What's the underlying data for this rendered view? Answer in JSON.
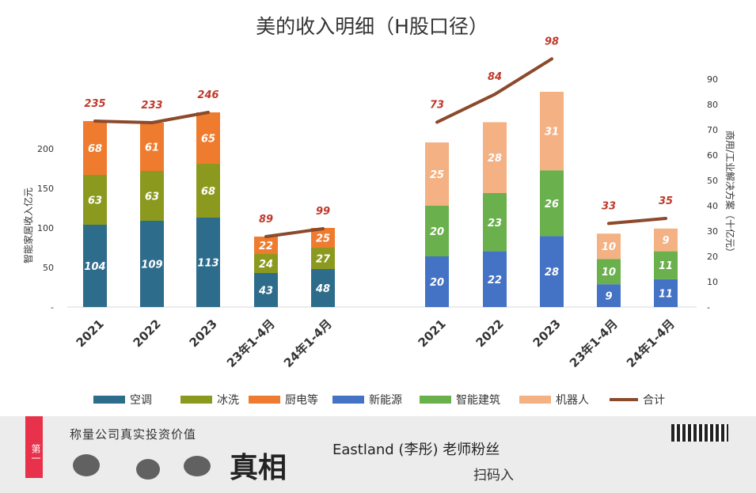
{
  "chart_data": {
    "type": "bar",
    "title": "美的收入明细（H股口径）",
    "left_chart": {
      "ylabel": "智能家居收入亿元",
      "ylim": [
        0,
        250
      ],
      "yticks": [
        "-",
        "50",
        "100",
        "150",
        "200"
      ],
      "categories": [
        "2021",
        "2022",
        "2023",
        "23年1-4月",
        "24年1-4月"
      ],
      "series": [
        {
          "name": "空调",
          "color": "#2E6C8C",
          "values": [
            104,
            109,
            113,
            43,
            48
          ]
        },
        {
          "name": "冰洗",
          "color": "#8B9A1E",
          "values": [
            63,
            63,
            68,
            24,
            27
          ]
        },
        {
          "name": "厨电等",
          "color": "#EF7B2E",
          "values": [
            68,
            61,
            65,
            22,
            25
          ]
        }
      ],
      "totals": [
        235,
        233,
        246,
        89,
        99
      ]
    },
    "right_chart": {
      "ylabel": "商用/工业解决方案（十亿元）",
      "ylim": [
        0,
        100
      ],
      "yticks": [
        "-",
        "10",
        "20",
        "30",
        "40",
        "50",
        "60",
        "70",
        "80",
        "90"
      ],
      "categories": [
        "2021",
        "2022",
        "2023",
        "23年1-4月",
        "24年1-4月"
      ],
      "series": [
        {
          "name": "新能源",
          "color": "#4472C4",
          "values": [
            20,
            22,
            28,
            9,
            11
          ]
        },
        {
          "name": "智能建筑",
          "color": "#6AB04C",
          "values": [
            20,
            23,
            26,
            10,
            11
          ]
        },
        {
          "name": "机器人",
          "color": "#F4B183",
          "values": [
            25,
            28,
            31,
            10,
            9
          ]
        }
      ],
      "totals": [
        73,
        84,
        98,
        33,
        35
      ]
    },
    "legend": [
      {
        "name": "空调",
        "color": "#2E6C8C",
        "kind": "box"
      },
      {
        "name": "冰洗",
        "color": "#8B9A1E",
        "kind": "box"
      },
      {
        "name": "厨电等",
        "color": "#EF7B2E",
        "kind": "box"
      },
      {
        "name": "新能源",
        "color": "#4472C4",
        "kind": "box"
      },
      {
        "name": "智能建筑",
        "color": "#6AB04C",
        "kind": "box"
      },
      {
        "name": "机器人",
        "color": "#F4B183",
        "kind": "box"
      },
      {
        "name": "合计",
        "color": "#8B4A2B",
        "kind": "line"
      }
    ],
    "total_line_color": "#8B4A2B",
    "total_label_color": "#C0392B"
  },
  "banner": {
    "tag": "第一",
    "slogan": "称量公司真实投资价值",
    "truth": "真相",
    "author": "Eastland (李彤) 老师粉丝",
    "scan": "扫码入"
  }
}
